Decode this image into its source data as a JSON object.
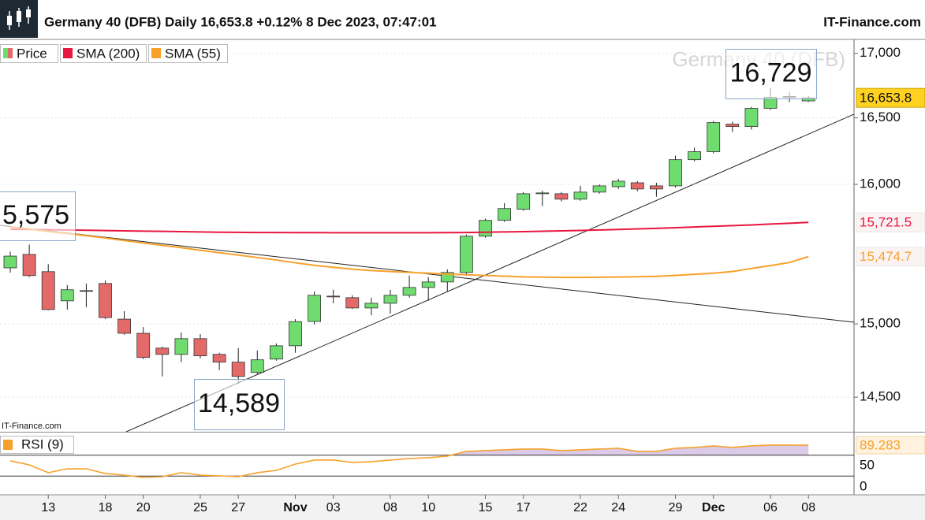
{
  "chart_data": {
    "type": "candlestick",
    "title": "Germany 40 (DFB) Daily 16,653.8 +0.12% 8 Dec 2023, 07:47:01",
    "brand": "IT-Finance.com",
    "watermark": "Germany 40 (DFB)",
    "source": "IT-Finance.com",
    "categories": [
      null,
      null,
      "13",
      null,
      null,
      "18",
      null,
      "20",
      null,
      null,
      "25",
      null,
      "27",
      null,
      null,
      "Nov",
      null,
      "03",
      null,
      null,
      "08",
      null,
      "10",
      null,
      null,
      "15",
      null,
      "17",
      null,
      null,
      "22",
      null,
      "24",
      null,
      null,
      "29",
      null,
      "Dec",
      null,
      null,
      "06",
      null,
      "08"
    ],
    "log_scale": true,
    "grid": true,
    "legend": "top-left",
    "ylim": [
      14270,
      17110
    ],
    "yticks": [
      {
        "value": 14500,
        "label": "14,500"
      },
      {
        "value": 15000,
        "label": "15,000"
      },
      {
        "value": 16000,
        "label": "16,000"
      },
      {
        "value": 16500,
        "label": "16,500"
      },
      {
        "value": 17000,
        "label": "17,000"
      }
    ],
    "series": [
      {
        "name": "Price",
        "type": "candlestick",
        "up_color": "#6fdc6f",
        "down_color": "#e46a6a",
        "color": "#5cc85c",
        "open": [
          15394,
          15490,
          15367,
          15161,
          15233,
          15283,
          15033,
          14935,
          14833,
          14790,
          14898,
          14790,
          14737,
          14667,
          14758,
          14849,
          15017,
          15194,
          15183,
          15111,
          15144,
          15200,
          15255,
          15294,
          15361,
          15621,
          15736,
          15817,
          15931,
          15931,
          15891,
          15943,
          15983,
          16012,
          15989,
          15989,
          16184,
          16244,
          16452,
          16434,
          16573,
          16664,
          16630
        ],
        "high": [
          15510,
          15561,
          15420,
          15272,
          15283,
          15305,
          15089,
          14978,
          14844,
          14941,
          14930,
          14801,
          14833,
          14817,
          14865,
          15033,
          15228,
          15239,
          15200,
          15183,
          15239,
          15339,
          15328,
          15383,
          15633,
          15748,
          15863,
          15943,
          15954,
          15943,
          15989,
          16000,
          16042,
          16024,
          16012,
          16214,
          16274,
          16476,
          16470,
          16585,
          16729,
          16700,
          16668
        ],
        "low": [
          15360,
          15328,
          15095,
          15100,
          15116,
          15033,
          14925,
          14758,
          14640,
          14737,
          14763,
          14683,
          14589,
          14656,
          14747,
          14801,
          14995,
          15144,
          15105,
          15061,
          15072,
          15183,
          15161,
          15228,
          15339,
          15610,
          15725,
          15806,
          15840,
          15874,
          15880,
          15931,
          15966,
          15949,
          15909,
          15977,
          16172,
          16232,
          16393,
          16411,
          16561,
          16622,
          16622
        ],
        "close": [
          15478,
          15339,
          15100,
          15239,
          15228,
          15044,
          14935,
          14769,
          14790,
          14898,
          14780,
          14737,
          14640,
          14753,
          14849,
          15016,
          15200,
          15189,
          15111,
          15144,
          15200,
          15255,
          15294,
          15361,
          15621,
          15736,
          15822,
          15931,
          15937,
          15891,
          15943,
          15989,
          16024,
          15966,
          15966,
          16184,
          16244,
          16464,
          16434,
          16573,
          16658,
          16658,
          16653.8
        ],
        "last_label": "16,653.8"
      },
      {
        "name": "SMA (200)",
        "color": "#e8173f",
        "values": [
          15672,
          15670,
          15668,
          15666,
          15664,
          15662,
          15660,
          15658,
          15656,
          15654,
          15652,
          15650,
          15649,
          15648,
          15648,
          15647,
          15647,
          15646,
          15646,
          15646,
          15646,
          15646,
          15646,
          15647,
          15648,
          15650,
          15652,
          15654,
          15657,
          15660,
          15663,
          15666,
          15670,
          15674,
          15678,
          15683,
          15688,
          15693,
          15698,
          15703,
          15709,
          15715,
          15721.5
        ],
        "last_label": "15,721.5"
      },
      {
        "name": "SMA (55)",
        "color": "#f7a12a",
        "values": [
          15688,
          15672,
          15655,
          15640,
          15625,
          15608,
          15590,
          15572,
          15555,
          15538,
          15520,
          15502,
          15485,
          15468,
          15450,
          15430,
          15412,
          15398,
          15385,
          15375,
          15368,
          15362,
          15356,
          15350,
          15345,
          15340,
          15335,
          15330,
          15328,
          15326,
          15326,
          15327,
          15329,
          15331,
          15334,
          15340,
          15348,
          15356,
          15368,
          15390,
          15410,
          15432,
          15474.7
        ],
        "last_label": "15,474.7"
      }
    ],
    "annotations": [
      "5,575",
      "14,589",
      "16,729"
    ],
    "indicator": {
      "type": "line",
      "name": "RSI (9)",
      "color": "#f7a12a",
      "fill": "#dccbe8",
      "values": [
        59.1,
        51.5,
        36.4,
        43.9,
        43.9,
        34.8,
        31.8,
        27.3,
        28.8,
        36.4,
        31.8,
        30.3,
        28.8,
        36.4,
        40.9,
        53,
        60.6,
        60.6,
        56.1,
        57.6,
        60.6,
        63.6,
        65.2,
        68.2,
        77.3,
        78.8,
        80.3,
        81.8,
        81.8,
        78.8,
        80.3,
        81.8,
        83.3,
        77.3,
        77.3,
        83.3,
        84.8,
        87.9,
        84.8,
        87.9,
        89.4,
        89.4,
        89.283
      ],
      "ylim": [
        -6,
        112
      ],
      "yticks": [
        0,
        50
      ],
      "levels": [
        70,
        30
      ],
      "last_label": "89.283"
    }
  }
}
